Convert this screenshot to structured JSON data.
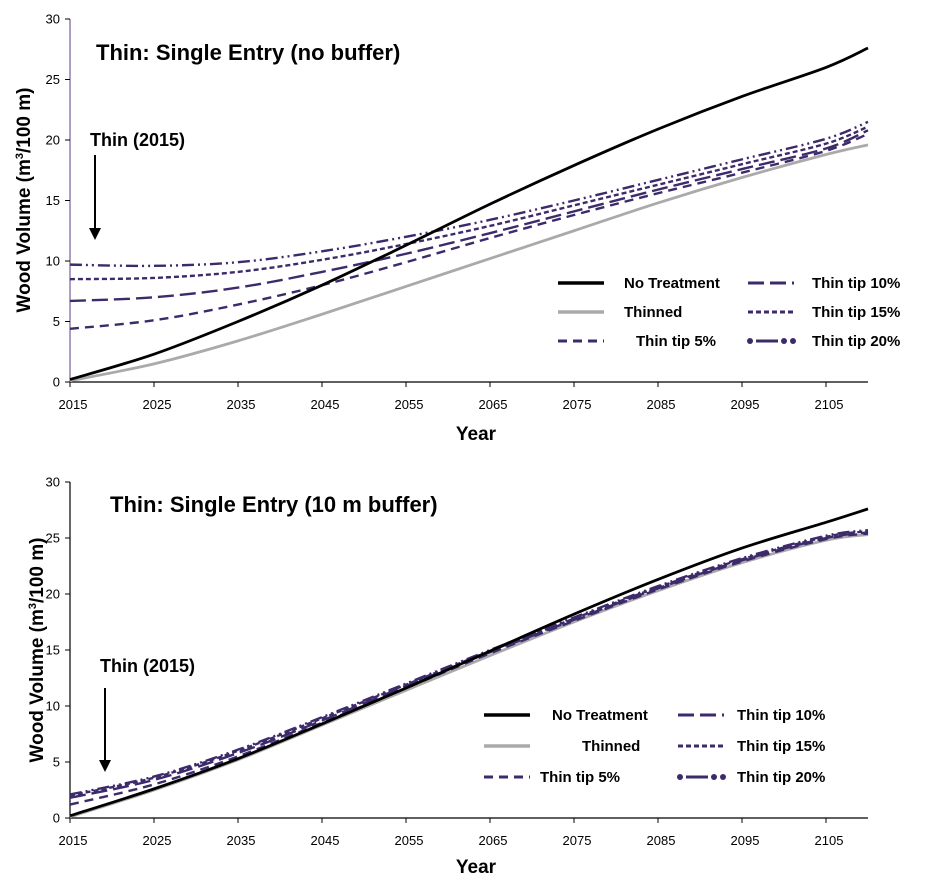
{
  "colors": {
    "no_treatment": "#000000",
    "thinned": "#aaaaaa",
    "thin_tip": "#3d2a6b",
    "axis": "#000000",
    "top_y_axis": "#7a5c99"
  },
  "chart_data": [
    {
      "type": "line",
      "title": "Thin: Single Entry (no buffer)",
      "xlabel": "Year",
      "ylabel": "Wood Volume (m³/100 m)",
      "ylabel_parts": {
        "pre": "Wood Volume (m",
        "sup": "3",
        "post": "/100 m)"
      },
      "xlim": [
        2015,
        2110
      ],
      "ylim": [
        0,
        30
      ],
      "xticks": [
        "2015",
        "2025",
        "2035",
        "2045",
        "2055",
        "2065",
        "2075",
        "2085",
        "2095",
        "2105"
      ],
      "yticks": [
        "0",
        "5",
        "10",
        "15",
        "20",
        "25",
        "30"
      ],
      "annotation": "Thin (2015)",
      "legend_columns": 2,
      "x": [
        2015,
        2025,
        2035,
        2045,
        2055,
        2065,
        2075,
        2085,
        2095,
        2105,
        2110
      ],
      "series": [
        {
          "name": "No Treatment",
          "style": "solid",
          "color_key": "no_treatment",
          "values": [
            0.2,
            2.3,
            5.0,
            8.0,
            11.3,
            14.7,
            17.9,
            20.9,
            23.6,
            26.0,
            27.6
          ]
        },
        {
          "name": "Thinned",
          "style": "solid",
          "color_key": "thinned",
          "values": [
            0.1,
            1.5,
            3.4,
            5.6,
            7.9,
            10.2,
            12.5,
            14.8,
            16.9,
            18.8,
            19.6
          ]
        },
        {
          "name": "Thin tip 5%",
          "style": "dash",
          "color_key": "thin_tip",
          "values": [
            4.4,
            5.1,
            6.4,
            8.0,
            9.9,
            11.9,
            13.8,
            15.6,
            17.3,
            19.1,
            20.5
          ]
        },
        {
          "name": "Thin tip 10%",
          "style": "longdash",
          "color_key": "thin_tip",
          "values": [
            6.7,
            7.0,
            7.8,
            9.1,
            10.6,
            12.3,
            14.1,
            15.9,
            17.6,
            19.3,
            20.8
          ]
        },
        {
          "name": "Thin tip 15%",
          "style": "shortdash",
          "color_key": "thin_tip",
          "values": [
            8.5,
            8.6,
            9.1,
            10.1,
            11.4,
            12.9,
            14.6,
            16.3,
            18.0,
            19.7,
            21.1
          ]
        },
        {
          "name": "Thin tip 20%",
          "style": "dashdotdot",
          "color_key": "thin_tip",
          "values": [
            9.7,
            9.6,
            9.9,
            10.8,
            12.0,
            13.4,
            15.0,
            16.7,
            18.4,
            20.1,
            21.5
          ]
        }
      ]
    },
    {
      "type": "line",
      "title": "Thin: Single Entry (10 m buffer)",
      "xlabel": "Year",
      "ylabel": "Wood Volume (m³/100 m)",
      "ylabel_parts": {
        "pre": "Wood Volume (m",
        "sup": "3",
        "post": "/100 m)"
      },
      "xlim": [
        2015,
        2110
      ],
      "ylim": [
        0,
        30
      ],
      "xticks": [
        "2015",
        "2025",
        "2035",
        "2045",
        "2055",
        "2065",
        "2075",
        "2085",
        "2095",
        "2105"
      ],
      "yticks": [
        "0",
        "5",
        "10",
        "15",
        "20",
        "25",
        "30"
      ],
      "annotation": "Thin (2015)",
      "legend_columns": 2,
      "x": [
        2015,
        2025,
        2035,
        2045,
        2055,
        2065,
        2075,
        2085,
        2095,
        2105,
        2110
      ],
      "series": [
        {
          "name": "No Treatment",
          "style": "solid",
          "color_key": "no_treatment",
          "values": [
            0.2,
            2.6,
            5.3,
            8.4,
            11.6,
            14.9,
            18.2,
            21.3,
            24.1,
            26.4,
            27.6
          ]
        },
        {
          "name": "Thinned",
          "style": "solid",
          "color_key": "thinned",
          "values": [
            0.1,
            2.5,
            5.2,
            8.3,
            11.4,
            14.5,
            17.5,
            20.3,
            22.8,
            24.8,
            25.3
          ]
        },
        {
          "name": "Thin tip 5%",
          "style": "dash",
          "color_key": "thin_tip",
          "values": [
            1.2,
            3.0,
            5.5,
            8.5,
            11.6,
            14.7,
            17.6,
            20.4,
            22.9,
            24.9,
            25.4
          ]
        },
        {
          "name": "Thin tip 10%",
          "style": "longdash",
          "color_key": "thin_tip",
          "values": [
            1.8,
            3.4,
            5.8,
            8.7,
            11.8,
            14.8,
            17.7,
            20.5,
            23.0,
            25.0,
            25.5
          ]
        },
        {
          "name": "Thin tip 15%",
          "style": "shortdash",
          "color_key": "thin_tip",
          "values": [
            2.0,
            3.6,
            6.0,
            8.9,
            11.9,
            14.9,
            17.8,
            20.6,
            23.1,
            25.1,
            25.6
          ]
        },
        {
          "name": "Thin tip 20%",
          "style": "dashdotdot",
          "color_key": "thin_tip",
          "values": [
            2.1,
            3.7,
            6.1,
            9.0,
            12.0,
            15.0,
            17.9,
            20.7,
            23.2,
            25.2,
            25.7
          ]
        }
      ]
    }
  ]
}
